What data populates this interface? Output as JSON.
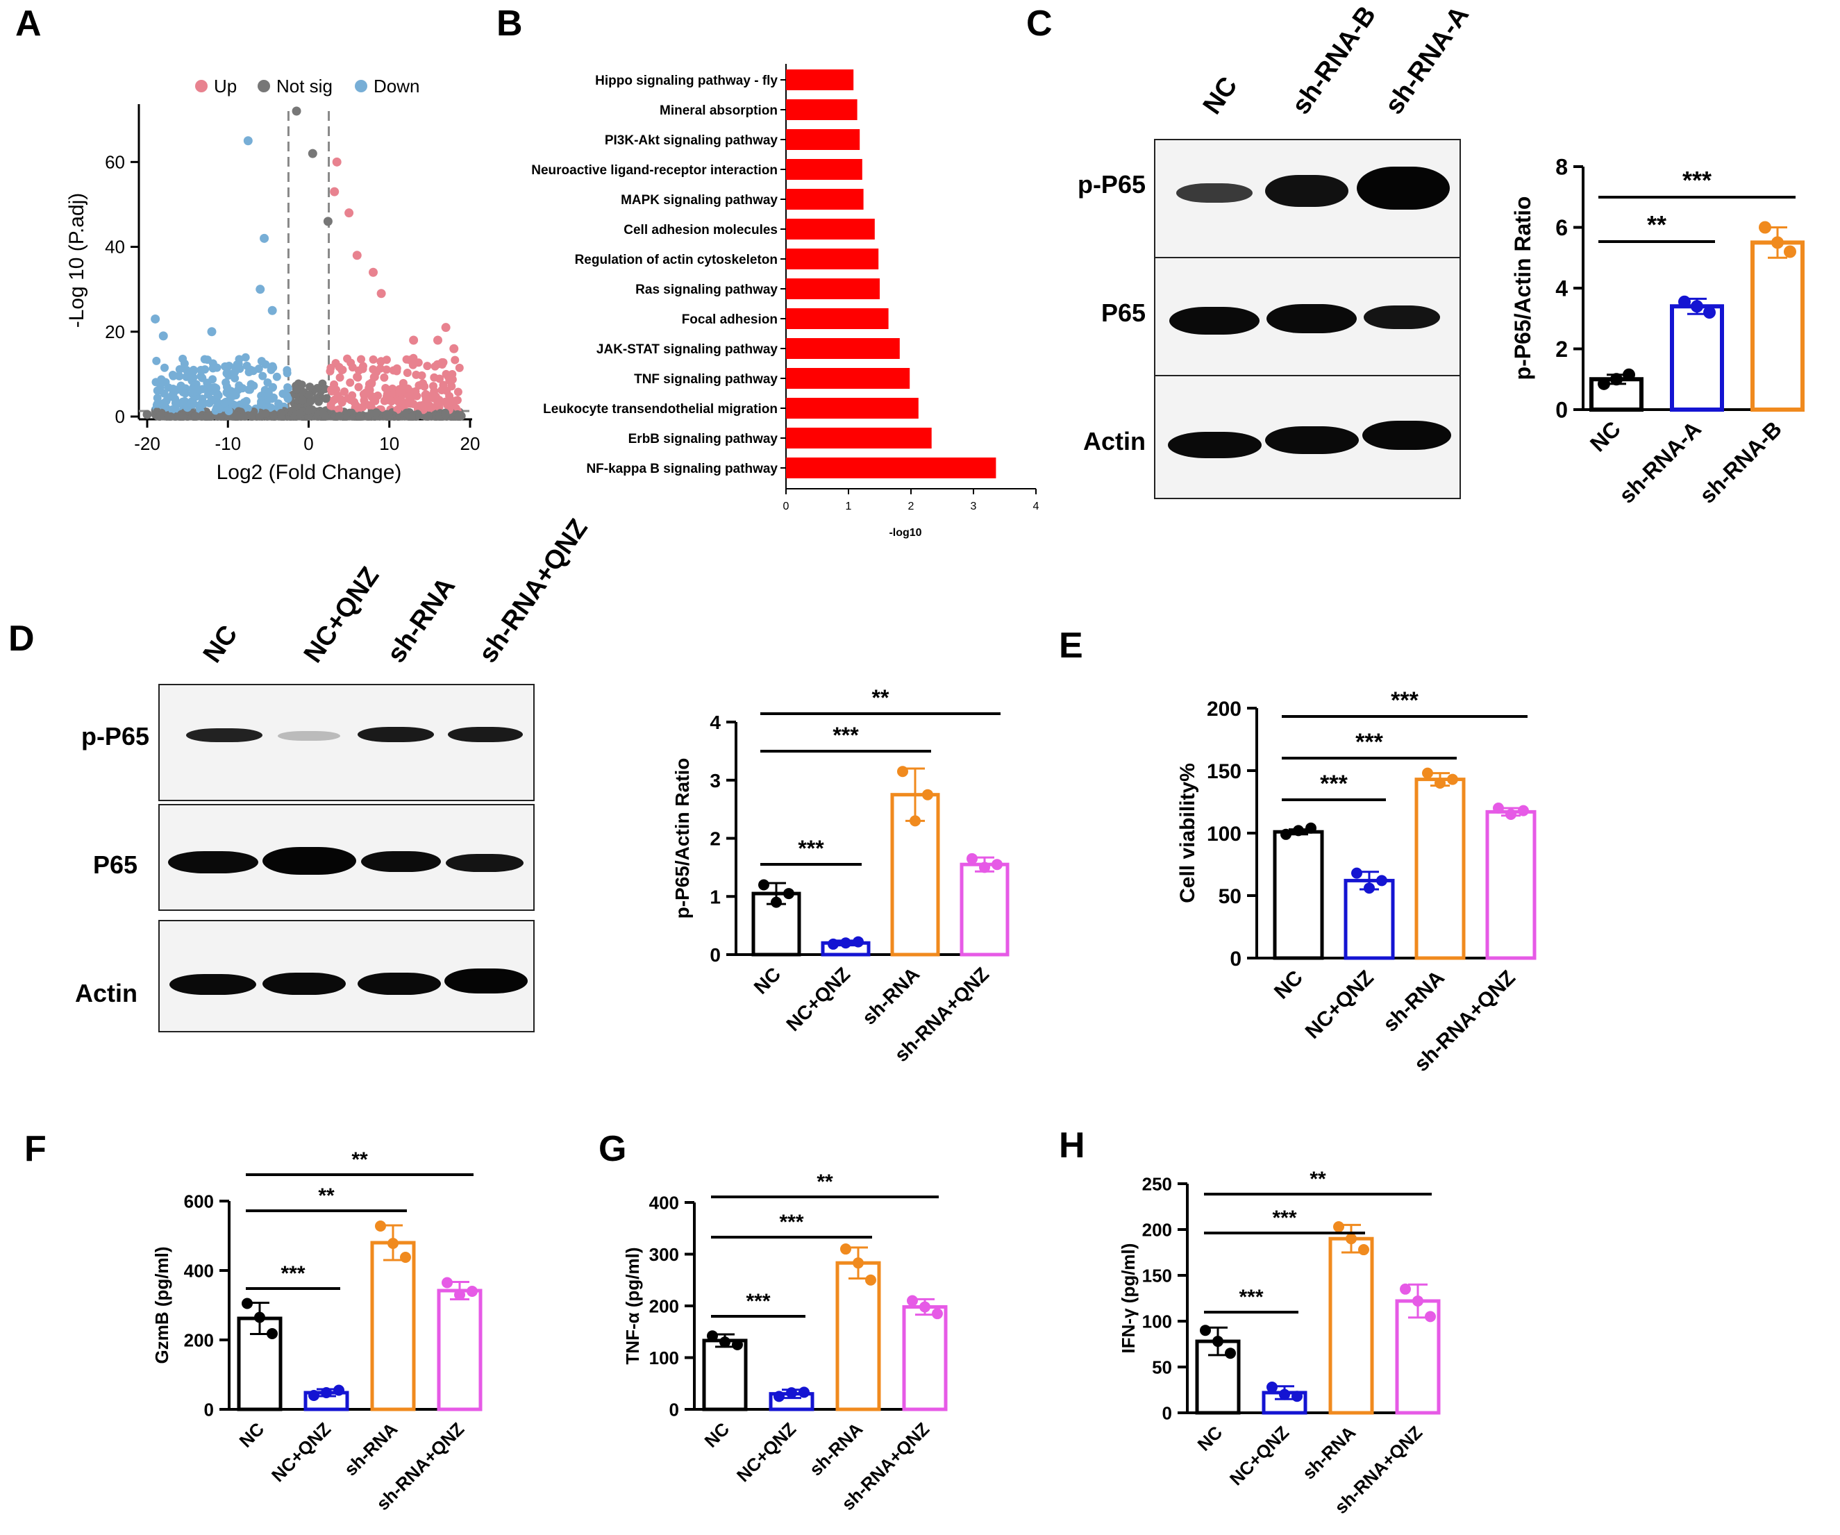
{
  "panel_labels": [
    "A",
    "B",
    "C",
    "D",
    "E",
    "F",
    "G",
    "H"
  ],
  "colors": {
    "nc": "#000000",
    "ncqnz": "#1414d2",
    "shrna": "#f08a1e",
    "shrnaqnz": "#e65ae6",
    "up": "#e8828f",
    "down": "#77aed6",
    "notsig": "#777777",
    "bar_red": "#ff0000"
  },
  "blots_c": {
    "lanes": [
      "NC",
      "sh-RNA-B",
      "sh-RNA-A"
    ],
    "rows": [
      "p-P65",
      "P65",
      "Actin"
    ]
  },
  "blots_d": {
    "lanes": [
      "NC",
      "NC+QNZ",
      "sh-RNA",
      "sh-RNA+QNZ"
    ],
    "rows": [
      "p-P65",
      "P65",
      "Actin"
    ]
  },
  "chart_data": [
    {
      "id": "A",
      "type": "scatter",
      "title": "",
      "xlabel": "Log2 (Fold Change)",
      "ylabel": "-Log 10 (P.adj)",
      "xlim": [
        -20,
        20
      ],
      "ylim": [
        0,
        72
      ],
      "xticks": [
        -20,
        -10,
        0,
        10,
        20
      ],
      "yticks": [
        0,
        20,
        40,
        60
      ],
      "legend": [
        "Up",
        "Not sig",
        "Down"
      ],
      "legend_position": "top",
      "fc_threshold": 2.5,
      "p_threshold": 1.3,
      "highlight_points": [
        {
          "x": -7.5,
          "y": 65,
          "group": "Down"
        },
        {
          "x": -5.5,
          "y": 42,
          "group": "Down"
        },
        {
          "x": -1.5,
          "y": 72,
          "group": "Not sig"
        },
        {
          "x": 0.5,
          "y": 62,
          "group": "Not sig"
        },
        {
          "x": 3.5,
          "y": 60,
          "group": "Up"
        },
        {
          "x": 3.2,
          "y": 53,
          "group": "Up"
        },
        {
          "x": 2.4,
          "y": 46,
          "group": "Not sig"
        },
        {
          "x": 5,
          "y": 48,
          "group": "Up"
        },
        {
          "x": 8,
          "y": 34,
          "group": "Up"
        },
        {
          "x": 9,
          "y": 29,
          "group": "Up"
        },
        {
          "x": 6,
          "y": 38,
          "group": "Up"
        },
        {
          "x": -6,
          "y": 30,
          "group": "Down"
        },
        {
          "x": -4.5,
          "y": 25,
          "group": "Down"
        },
        {
          "x": -19,
          "y": 23,
          "group": "Down"
        },
        {
          "x": -18,
          "y": 19,
          "group": "Down"
        },
        {
          "x": -12,
          "y": 20,
          "group": "Down"
        },
        {
          "x": 17,
          "y": 21,
          "group": "Up"
        },
        {
          "x": 16,
          "y": 18,
          "group": "Up"
        },
        {
          "x": 18,
          "y": 16,
          "group": "Up"
        },
        {
          "x": 13,
          "y": 18,
          "group": "Up"
        },
        {
          "x": -20,
          "y": 0.5,
          "group": "Not sig"
        }
      ]
    },
    {
      "id": "B",
      "type": "bar",
      "orientation": "horizontal",
      "xlabel": "-log10",
      "ylabel": "",
      "xlim": [
        0,
        4
      ],
      "xticks": [
        0,
        1,
        2,
        3,
        4
      ],
      "categories": [
        "Hippo signaling pathway - fly",
        "Mineral absorption",
        "PI3K-Akt signaling pathway",
        "Neuroactive ligand-receptor interaction",
        "MAPK signaling pathway",
        "Cell adhesion molecules",
        "Regulation of actin cytoskeleton",
        "Ras signaling pathway",
        "Focal adhesion",
        "JAK-STAT signaling pathway",
        "TNF signaling pathway",
        "Leukocyte transendothelial migration",
        "ErbB signaling pathway",
        "NF-kappa B signaling pathway"
      ],
      "values": [
        1.08,
        1.14,
        1.18,
        1.22,
        1.24,
        1.42,
        1.48,
        1.5,
        1.64,
        1.82,
        1.98,
        2.12,
        2.33,
        3.36
      ]
    },
    {
      "id": "C",
      "type": "bar",
      "ylabel": "p-P65/Actin Ratio",
      "ylim": [
        0,
        8
      ],
      "yticks": [
        0,
        2,
        4,
        6,
        8
      ],
      "categories": [
        "NC",
        "sh-RNA-A",
        "sh-RNA-B"
      ],
      "values": [
        1.0,
        3.4,
        5.5
      ],
      "errors": [
        0.15,
        0.25,
        0.5
      ],
      "points": [
        [
          0.85,
          1.0,
          1.15
        ],
        [
          3.55,
          3.4,
          3.2
        ],
        [
          6.0,
          5.5,
          5.2
        ]
      ],
      "significance": [
        {
          "from": 0,
          "to": 1,
          "label": "**"
        },
        {
          "from": 0,
          "to": 2,
          "label": "***"
        }
      ]
    },
    {
      "id": "D",
      "type": "bar",
      "ylabel": "p-P65/Actin Ratio",
      "ylim": [
        0,
        4
      ],
      "yticks": [
        0,
        1,
        2,
        3,
        4
      ],
      "categories": [
        "NC",
        "NC+QNZ",
        "sh-RNA",
        "sh-RNA+QNZ"
      ],
      "values": [
        1.05,
        0.2,
        2.75,
        1.55
      ],
      "errors": [
        0.18,
        0.04,
        0.45,
        0.12
      ],
      "points": [
        [
          1.2,
          0.9,
          1.05
        ],
        [
          0.18,
          0.2,
          0.22
        ],
        [
          3.15,
          2.3,
          2.75
        ],
        [
          1.65,
          1.5,
          1.55
        ]
      ],
      "significance": [
        {
          "from": 0,
          "to": 1,
          "label": "***"
        },
        {
          "from": 0,
          "to": 2,
          "label": "***"
        },
        {
          "from": 0,
          "to": 3,
          "label": "**"
        }
      ]
    },
    {
      "id": "E",
      "type": "bar",
      "ylabel": "Cell viability%",
      "ylim": [
        0,
        200
      ],
      "yticks": [
        0,
        50,
        100,
        150,
        200
      ],
      "categories": [
        "NC",
        "NC+QNZ",
        "sh-RNA",
        "sh-RNA+QNZ"
      ],
      "values": [
        101,
        62,
        143,
        117
      ],
      "errors": [
        2,
        7,
        5,
        3
      ],
      "points": [
        [
          99,
          102,
          104
        ],
        [
          68,
          56,
          62
        ],
        [
          148,
          140,
          143
        ],
        [
          120,
          115,
          118
        ]
      ],
      "significance": [
        {
          "from": 0,
          "to": 1,
          "label": "***"
        },
        {
          "from": 0,
          "to": 2,
          "label": "***"
        },
        {
          "from": 0,
          "to": 3,
          "label": "***"
        }
      ]
    },
    {
      "id": "F",
      "type": "bar",
      "ylabel": "GzmB (pg/ml)",
      "ylim": [
        0,
        600
      ],
      "yticks": [
        0,
        200,
        400,
        600
      ],
      "categories": [
        "NC",
        "NC+QNZ",
        "sh-RNA",
        "sh-RNA+QNZ"
      ],
      "values": [
        262,
        48,
        480,
        342
      ],
      "errors": [
        45,
        10,
        50,
        25
      ],
      "points": [
        [
          305,
          265,
          218
        ],
        [
          40,
          48,
          55
        ],
        [
          528,
          478,
          438
        ],
        [
          365,
          330,
          340
        ]
      ],
      "significance": [
        {
          "from": 0,
          "to": 1,
          "label": "***"
        },
        {
          "from": 0,
          "to": 2,
          "label": "**"
        },
        {
          "from": 0,
          "to": 3,
          "label": "**"
        }
      ]
    },
    {
      "id": "G",
      "type": "bar",
      "ylabel": "TNF-α (pg/ml)",
      "ylim": [
        0,
        400
      ],
      "yticks": [
        0,
        100,
        200,
        300,
        400
      ],
      "categories": [
        "NC",
        "NC+QNZ",
        "sh-RNA",
        "sh-RNA+QNZ"
      ],
      "values": [
        133,
        30,
        283,
        198
      ],
      "errors": [
        12,
        8,
        30,
        15
      ],
      "points": [
        [
          142,
          130,
          125
        ],
        [
          25,
          32,
          33
        ],
        [
          310,
          283,
          250
        ],
        [
          210,
          198,
          185
        ]
      ],
      "significance": [
        {
          "from": 0,
          "to": 1,
          "label": "***"
        },
        {
          "from": 0,
          "to": 2,
          "label": "***"
        },
        {
          "from": 0,
          "to": 3,
          "label": "**"
        }
      ]
    },
    {
      "id": "H",
      "type": "bar",
      "ylabel": "IFN-γ (pg/ml)",
      "ylim": [
        0,
        250
      ],
      "yticks": [
        0,
        50,
        100,
        150,
        200,
        250
      ],
      "categories": [
        "NC",
        "NC+QNZ",
        "sh-RNA",
        "sh-RNA+QNZ"
      ],
      "values": [
        78,
        22,
        190,
        122
      ],
      "errors": [
        15,
        7,
        15,
        18
      ],
      "points": [
        [
          90,
          78,
          65
        ],
        [
          28,
          20,
          18
        ],
        [
          203,
          190,
          178
        ],
        [
          135,
          122,
          105
        ]
      ],
      "significance": [
        {
          "from": 0,
          "to": 1,
          "label": "***"
        },
        {
          "from": 0,
          "to": 2,
          "label": "***"
        },
        {
          "from": 0,
          "to": 3,
          "label": "**"
        }
      ]
    }
  ]
}
